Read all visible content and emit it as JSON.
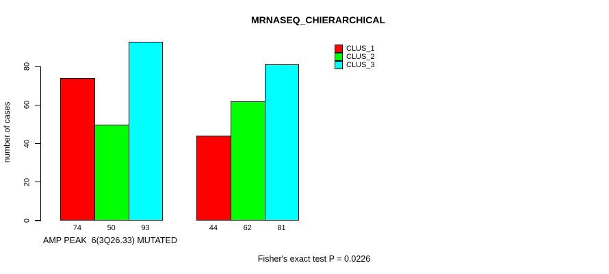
{
  "title": "MRNASEQ_CHIERARCHICAL",
  "y_axis": {
    "label": "number of cases",
    "ticks": [
      0,
      20,
      40,
      60,
      80
    ]
  },
  "x_axis": {
    "label": "AMP PEAK  6(3Q26.33) MUTATED"
  },
  "footer": "Fisher's exact test P = 0.0226",
  "legend": {
    "entries": [
      {
        "label": "CLUS_1",
        "color": "#FF0000"
      },
      {
        "label": "CLUS_2",
        "color": "#00FF00"
      },
      {
        "label": "CLUS_3",
        "color": "#00FFFF"
      }
    ]
  },
  "chart_data": {
    "type": "bar",
    "title": "MRNASEQ_CHIERARCHICAL",
    "xlabel": "AMP PEAK  6(3Q26.33) MUTATED",
    "ylabel": "number of cases",
    "annotation": "Fisher's exact test P = 0.0226",
    "categories": [
      "group_1",
      "group_2"
    ],
    "series": [
      {
        "name": "CLUS_1",
        "color": "#FF0000",
        "values": [
          74,
          44
        ]
      },
      {
        "name": "CLUS_2",
        "color": "#00FF00",
        "values": [
          50,
          62
        ]
      },
      {
        "name": "CLUS_3",
        "color": "#00FFFF",
        "values": [
          93,
          81
        ]
      }
    ],
    "bar_value_labels": [
      [
        74,
        50,
        93
      ],
      [
        44,
        62,
        81
      ]
    ],
    "yticks": [
      0,
      20,
      40,
      60,
      80
    ],
    "ylim": [
      0,
      95
    ],
    "grid": false,
    "legend_position": "top-right",
    "bar_outline_color": "#000000",
    "background_color": "#FFFFFF"
  }
}
